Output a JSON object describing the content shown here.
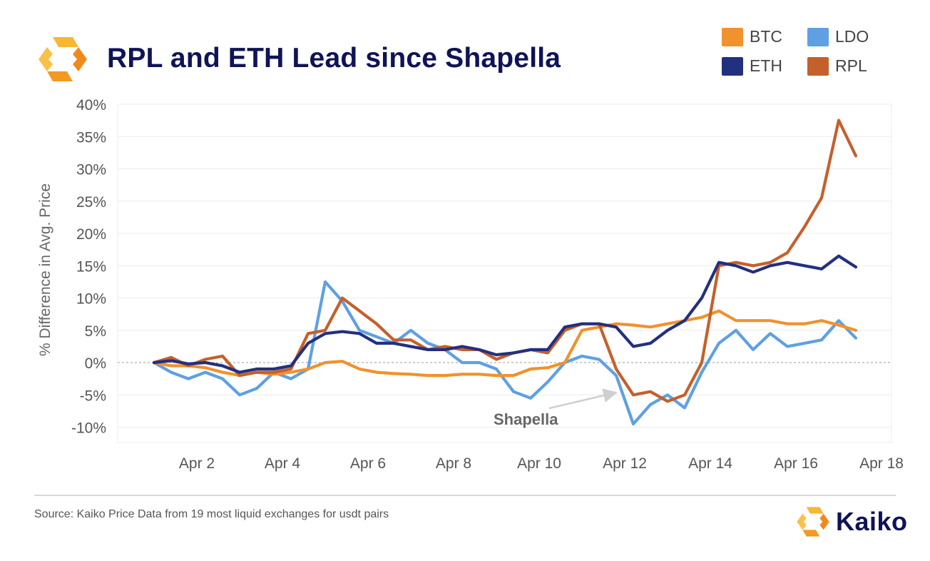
{
  "header": {
    "title": "RPL and ETH Lead since Shapella"
  },
  "footer": {
    "source": "Source: Kaiko Price Data from 19 most liquid exchanges for usdt pairs",
    "brand": "Kaiko"
  },
  "colors": {
    "BTC": "#f0922e",
    "ETH": "#23307e",
    "LDO": "#5fa0e2",
    "RPL": "#c4602b",
    "title": "#0f1357",
    "brand_orange": "#f39a23"
  },
  "chart_data": {
    "type": "line",
    "title": "RPL and ETH Lead since Shapella",
    "xlabel": "",
    "ylabel": "% Difference in Avg. Price",
    "ylim": [
      -12,
      40
    ],
    "y_ticks": [
      -10,
      -5,
      0,
      5,
      10,
      15,
      20,
      25,
      30,
      35,
      40
    ],
    "y_tick_labels": [
      "-10%",
      "-5%",
      "0%",
      "5%",
      "10%",
      "15%",
      "20%",
      "25%",
      "30%",
      "35%",
      "40%"
    ],
    "x_ticks": [
      2,
      4,
      6,
      8,
      10,
      12,
      14,
      16,
      18
    ],
    "x_tick_labels": [
      "Apr 2",
      "Apr 4",
      "Apr 6",
      "Apr 8",
      "Apr 10",
      "Apr 12",
      "Apr 14",
      "Apr 16",
      "Apr 18"
    ],
    "legend_position": "top-right",
    "grid": "horizontal",
    "zero_line": "dashed",
    "annotations": [
      {
        "text": "Shapella",
        "x": 12.0,
        "y": -4.5
      }
    ],
    "series": [
      {
        "name": "BTC",
        "x": [
          1.0,
          1.4,
          1.8,
          2.2,
          2.6,
          3.0,
          3.4,
          3.8,
          4.2,
          4.6,
          5.0,
          5.4,
          5.8,
          6.2,
          6.6,
          7.0,
          7.4,
          7.8,
          8.2,
          8.6,
          9.0,
          9.4,
          9.8,
          10.2,
          10.6,
          11.0,
          11.4,
          11.8,
          12.2,
          12.6,
          13.0,
          13.4,
          13.8,
          14.2,
          14.6,
          15.0,
          15.4,
          15.8,
          16.2,
          16.6,
          17.0,
          17.4
        ],
        "values": [
          0,
          -0.5,
          -0.5,
          -0.8,
          -1.5,
          -2.0,
          -1.5,
          -1.8,
          -1.5,
          -1.0,
          0,
          0.2,
          -1.0,
          -1.5,
          -1.7,
          -1.8,
          -2.0,
          -2.0,
          -1.8,
          -1.8,
          -2.0,
          -2.0,
          -1.0,
          -0.8,
          0,
          5.0,
          5.5,
          6.0,
          5.8,
          5.5,
          6.0,
          6.5,
          7.0,
          8.0,
          6.5,
          6.5,
          6.5,
          6.0,
          6.0,
          6.5,
          5.8,
          5.0
        ]
      },
      {
        "name": "ETH",
        "x": [
          1.0,
          1.4,
          1.8,
          2.2,
          2.6,
          3.0,
          3.4,
          3.8,
          4.2,
          4.6,
          5.0,
          5.4,
          5.8,
          6.2,
          6.6,
          7.0,
          7.4,
          7.8,
          8.2,
          8.6,
          9.0,
          9.4,
          9.8,
          10.2,
          10.6,
          11.0,
          11.4,
          11.8,
          12.2,
          12.6,
          13.0,
          13.4,
          13.8,
          14.2,
          14.6,
          15.0,
          15.4,
          15.8,
          16.2,
          16.6,
          17.0,
          17.4
        ],
        "values": [
          0,
          0.3,
          -0.2,
          0,
          -0.5,
          -1.5,
          -1.0,
          -1.0,
          -0.5,
          3.0,
          4.5,
          4.8,
          4.5,
          3.0,
          3.0,
          2.5,
          2.0,
          2.0,
          2.5,
          2.0,
          1.2,
          1.5,
          2.0,
          2.0,
          5.5,
          6.0,
          6.0,
          5.5,
          2.5,
          3.0,
          5.0,
          6.5,
          10.0,
          15.5,
          15.0,
          14.0,
          15.0,
          15.5,
          15.0,
          14.5,
          16.5,
          14.8
        ]
      },
      {
        "name": "LDO",
        "x": [
          1.0,
          1.4,
          1.8,
          2.2,
          2.6,
          3.0,
          3.4,
          3.8,
          4.2,
          4.6,
          5.0,
          5.4,
          5.8,
          6.2,
          6.6,
          7.0,
          7.4,
          7.8,
          8.2,
          8.6,
          9.0,
          9.4,
          9.8,
          10.2,
          10.6,
          11.0,
          11.4,
          11.8,
          12.2,
          12.6,
          13.0,
          13.4,
          13.8,
          14.2,
          14.6,
          15.0,
          15.4,
          15.8,
          16.2,
          16.6,
          17.0,
          17.4
        ],
        "values": [
          0,
          -1.5,
          -2.5,
          -1.5,
          -2.5,
          -5.0,
          -4.0,
          -1.5,
          -2.5,
          -1.0,
          12.5,
          9.5,
          5.0,
          4.0,
          3.0,
          5.0,
          3.0,
          2.0,
          0,
          0,
          -1.0,
          -4.5,
          -5.5,
          -3.0,
          0,
          1.0,
          0.5,
          -2.0,
          -9.5,
          -6.5,
          -5.0,
          -7.0,
          -1.5,
          3.0,
          5.0,
          2.0,
          4.5,
          2.5,
          3.0,
          3.5,
          6.5,
          3.8
        ]
      },
      {
        "name": "RPL",
        "x": [
          1.0,
          1.4,
          1.8,
          2.2,
          2.6,
          3.0,
          3.4,
          3.8,
          4.2,
          4.6,
          5.0,
          5.4,
          5.8,
          6.2,
          6.6,
          7.0,
          7.4,
          7.8,
          8.2,
          8.6,
          9.0,
          9.4,
          9.8,
          10.2,
          10.6,
          11.0,
          11.4,
          11.8,
          12.2,
          12.6,
          13.0,
          13.4,
          13.8,
          14.2,
          14.6,
          15.0,
          15.4,
          15.8,
          16.2,
          16.6,
          17.0,
          17.4
        ],
        "values": [
          0,
          0.8,
          -0.5,
          0.5,
          1.0,
          -2.0,
          -1.5,
          -1.5,
          -1.0,
          4.5,
          5.0,
          10.0,
          8.0,
          6.0,
          3.5,
          3.5,
          2.0,
          2.5,
          2.0,
          2.0,
          0.5,
          1.5,
          2.0,
          1.5,
          5.0,
          6.0,
          6.0,
          -1.0,
          -5.0,
          -4.5,
          -6.0,
          -5.0,
          0,
          15.0,
          15.5,
          15.0,
          15.5,
          17.0,
          21.0,
          25.5,
          37.5,
          32.0
        ]
      }
    ]
  }
}
